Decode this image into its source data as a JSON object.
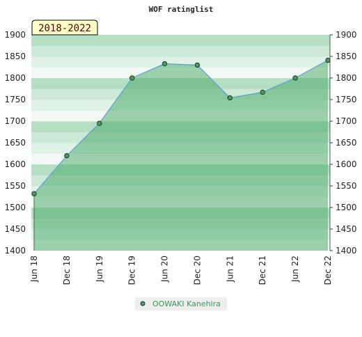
{
  "chart_data": {
    "type": "area",
    "title": "WOF ratinglist",
    "period_label": "2018-2022",
    "categories": [
      "Jun 18",
      "Dec 18",
      "Jun 19",
      "Dec 19",
      "Jun 20",
      "Dec 20",
      "Jun 21",
      "Dec 21",
      "Jun 22",
      "Dec 22"
    ],
    "series": [
      {
        "name": "OOWAKI Kanehira",
        "color": "#5aa0d8",
        "values": [
          1532,
          1620,
          1695,
          1800,
          1833,
          1830,
          1754,
          1767,
          1800,
          1841
        ]
      }
    ],
    "ylim": [
      1400,
      1900
    ],
    "yticks": [
      1400,
      1450,
      1500,
      1550,
      1600,
      1650,
      1700,
      1750,
      1800,
      1850,
      1900
    ]
  }
}
